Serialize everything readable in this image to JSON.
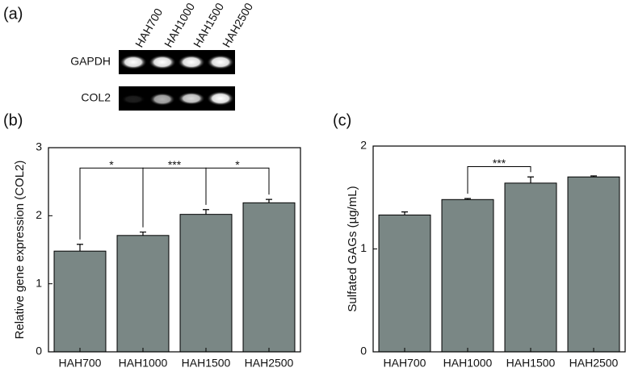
{
  "panel_labels": [
    "(a)",
    "(b)",
    "(c)"
  ],
  "gel": {
    "lanes": [
      "HAH700",
      "HAH1000",
      "HAH1500",
      "HAH2500"
    ],
    "rows": [
      "GAPDH",
      "COL2"
    ]
  },
  "chart_data": [
    {
      "type": "bar",
      "ylabel": "Relative gene expression (COL2)",
      "categories": [
        "HAH700",
        "HAH1000",
        "HAH1500",
        "HAH2500"
      ],
      "values": [
        1.48,
        1.71,
        2.02,
        2.19
      ],
      "errors": [
        0.1,
        0.05,
        0.07,
        0.05
      ],
      "color": "#7a8785",
      "ylim": [
        0,
        3
      ],
      "yticks": [
        0,
        1,
        2,
        3
      ],
      "annotations": [
        {
          "text": "*",
          "from": 0,
          "to": 1
        },
        {
          "text": "***",
          "from": 1,
          "to": 2
        },
        {
          "text": "*",
          "from": 2,
          "to": 3
        }
      ]
    },
    {
      "type": "bar",
      "ylabel": "Sulfated GAGs (µg/mL)",
      "categories": [
        "HAH700",
        "HAH1000",
        "HAH1500",
        "HAH2500"
      ],
      "values": [
        1.33,
        1.48,
        1.64,
        1.7
      ],
      "errors": [
        0.03,
        0.01,
        0.06,
        0.01
      ],
      "color": "#7a8785",
      "ylim": [
        0,
        2
      ],
      "yticks": [
        0,
        1,
        2
      ],
      "annotations": [
        {
          "text": "***",
          "from": 1,
          "to": 2
        }
      ]
    }
  ]
}
